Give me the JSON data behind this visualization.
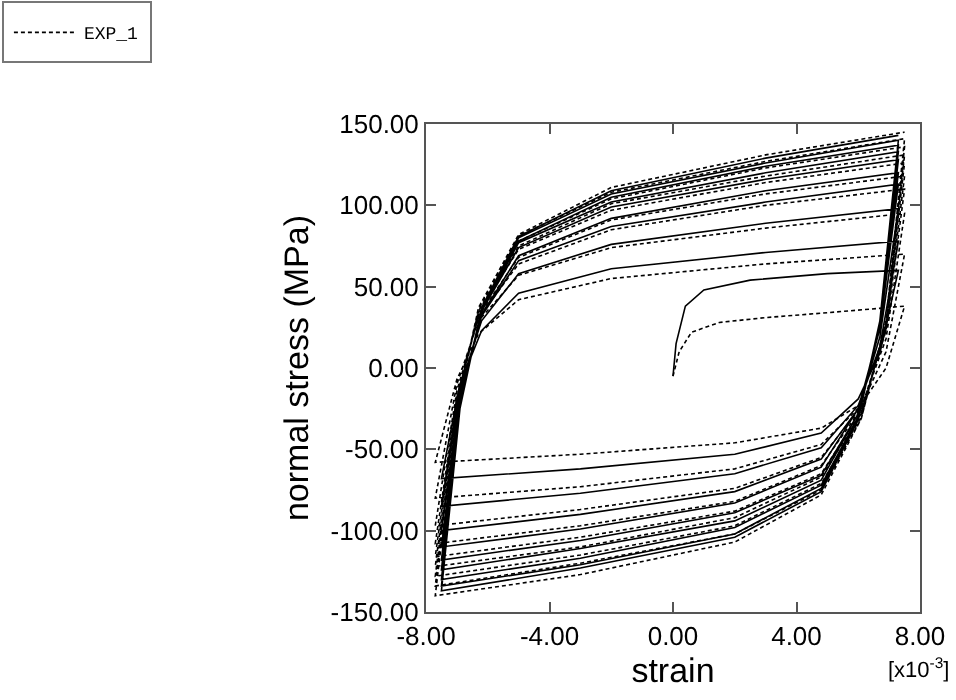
{
  "chart_data": {
    "type": "line",
    "xlabel": "strain",
    "ylabel": "normal stress (MPa)",
    "annotations": [
      "[x10$^{-3}$]"
    ],
    "xlim": [
      -8,
      8
    ],
    "xticks": [
      {
        "value": -8,
        "label": "-8.00"
      },
      {
        "value": -4,
        "label": "-4.00"
      },
      {
        "value": 0,
        "label": "0.00"
      },
      {
        "value": 4,
        "label": "4.00"
      },
      {
        "value": 8,
        "label": "8.00"
      }
    ],
    "ylim": [
      -150,
      150
    ],
    "yticks": [
      {
        "value": -150,
        "label": "-150.00"
      },
      {
        "value": -100,
        "label": "-100.00"
      },
      {
        "value": -50,
        "label": "-50.00"
      },
      {
        "value": 0,
        "label": "0.00"
      },
      {
        "value": 50,
        "label": "50.00"
      },
      {
        "value": 100,
        "label": "100.00"
      },
      {
        "value": 150,
        "label": "150.00"
      }
    ],
    "grid": false,
    "legend": "top left",
    "marker": "none",
    "series": [
      {
        "color": "#000000",
        "line_style": "solid",
        "x": [
          0,
          0.1,
          0.4,
          1,
          2.5,
          5,
          7.3,
          6.7,
          6.0,
          4.8,
          2.0,
          -3.0,
          -7.5,
          -6.9,
          -6.2,
          -5.0,
          -2.0,
          3.0,
          7.3,
          6.7,
          6.0,
          4.8,
          2.0,
          -3.0,
          -7.5,
          -6.9,
          -6.2,
          -5.0,
          -2.0,
          3.0,
          7.3,
          6.7,
          6.0,
          4.8,
          2.0,
          -3.0,
          -7.5,
          -6.9,
          -6.2,
          -5.0,
          -2.0,
          3.0,
          7.3,
          6.7,
          6.0,
          4.8,
          2.0,
          -3.0,
          -7.5,
          -6.9,
          -6.2,
          -5.0,
          -2.0,
          3.0,
          7.3,
          6.7,
          6.0,
          4.8,
          2.0,
          -3.0,
          -7.5,
          -6.9,
          -6.2,
          -5.0,
          -2.0,
          3.0,
          7.3,
          6.7,
          6.0,
          4.8,
          2.0,
          -3.0,
          -7.5,
          -6.9,
          -6.2,
          -5.0,
          -2.0,
          3.0,
          7.3,
          6.7,
          6.0,
          4.8,
          2.0,
          -3.0,
          -7.5,
          -6.9,
          -6.2,
          -5.0,
          -2.0,
          3.0,
          7.3,
          6.7,
          6.0,
          4.8,
          2.0,
          -3.0,
          -7.5,
          -6.9,
          -6.2,
          -5.0,
          -2.0,
          3.0,
          7.3,
          6.7,
          6.0,
          4.8,
          2.0,
          -3.0,
          -7.5,
          -6.9,
          -6.2,
          -5.0,
          -2.0,
          3.0,
          7.3
        ],
        "values": [
          -5,
          15,
          38,
          48,
          54,
          58,
          60,
          9,
          -19,
          -40,
          -53,
          -62,
          -68,
          -10,
          23,
          46,
          61,
          71,
          78,
          13,
          -23,
          -49,
          -65,
          -77,
          -85,
          -12,
          29,
          58,
          76,
          89,
          98,
          19,
          -25,
          -56,
          -76,
          -90,
          -100,
          -15,
          32,
          66,
          87,
          102,
          113,
          24,
          -25,
          -61,
          -83,
          -99,
          -110,
          -18,
          33,
          69,
          92,
          109,
          120,
          25,
          -28,
          -66,
          -89,
          -106,
          -118,
          -20,
          35,
          74,
          99,
          116,
          128,
          27,
          -28,
          -69,
          -94,
          -111,
          -124,
          -21,
          35,
          77,
          102,
          120,
          133,
          28,
          -30,
          -72,
          -98,
          -117,
          -130,
          -23,
          36,
          78,
          105,
          124,
          137,
          29,
          -31,
          -74,
          -102,
          -121,
          -134,
          -24,
          36,
          80,
          107,
          126,
          140,
          29,
          -32,
          -76,
          -104,
          -123,
          -137,
          -25,
          37,
          81,
          109,
          129,
          143
        ]
      },
      {
        "name": "EXP_1",
        "color": "#000000",
        "line_style": "dashed",
        "x": [
          0,
          0.2,
          0.6,
          1.5,
          3,
          5,
          7.5,
          6.9,
          6.1,
          4.8,
          2.0,
          -3.0,
          -7.7,
          -7.0,
          -6.3,
          -5.0,
          -2.0,
          3.0,
          7.5,
          6.9,
          6.1,
          4.8,
          2.0,
          -3.0,
          -7.7,
          -7.0,
          -6.3,
          -5.0,
          -2.0,
          3.0,
          7.5,
          6.9,
          6.1,
          4.8,
          2.0,
          -3.0,
          -7.7,
          -7.0,
          -6.3,
          -5.0,
          -2.0,
          3.0,
          7.5,
          6.9,
          6.1,
          4.8,
          2.0,
          -3.0,
          -7.7,
          -7.0,
          -6.3,
          -5.0,
          -2.0,
          3.0,
          7.5,
          6.9,
          6.1,
          4.8,
          2.0,
          -3.0,
          -7.7,
          -7.0,
          -6.3,
          -5.0,
          -2.0,
          3.0,
          7.5,
          6.9,
          6.1,
          4.8,
          2.0,
          -3.0,
          -7.7,
          -7.0,
          -6.3,
          -5.0,
          -2.0,
          3.0,
          7.5,
          6.9,
          6.1,
          4.8,
          2.0,
          -3.0,
          -7.7,
          -7.0,
          -6.3,
          -5.0,
          -2.0,
          3.0,
          7.5,
          6.9,
          6.1,
          4.8,
          2.0,
          -3.0,
          -7.7,
          -7.0,
          -6.3,
          -5.0,
          -2.0,
          3.0,
          7.5,
          6.9,
          6.1,
          4.8,
          2.0,
          -3.0,
          -7.7,
          -7.0,
          -6.3,
          -5.0,
          -2.0,
          3.0,
          7.5
        ],
        "values": [
          -5,
          10,
          22,
          28,
          31,
          34,
          38,
          0,
          -22,
          -37,
          -46,
          -53,
          -58,
          -7,
          21,
          42,
          55,
          64,
          70,
          10,
          -23,
          -47,
          -62,
          -73,
          -80,
          -10,
          29,
          57,
          74,
          86,
          95,
          18,
          -24,
          -55,
          -74,
          -87,
          -97,
          -14,
          31,
          64,
          85,
          100,
          110,
          23,
          -25,
          -60,
          -82,
          -97,
          -108,
          -18,
          32,
          68,
          91,
          107,
          118,
          24,
          -27,
          -65,
          -88,
          -104,
          -116,
          -19,
          34,
          73,
          97,
          114,
          126,
          27,
          -28,
          -67,
          -92,
          -110,
          -122,
          -21,
          35,
          75,
          101,
          118,
          131,
          27,
          -30,
          -71,
          -97,
          -115,
          -128,
          -22,
          36,
          78,
          104,
          123,
          136,
          28,
          -31,
          -75,
          -102,
          -120,
          -134,
          -24,
          37,
          81,
          108,
          127,
          141,
          29,
          -31,
          -78,
          -107,
          -127,
          -140,
          -26,
          37,
          82,
          111,
          131,
          145
        ]
      }
    ]
  }
}
